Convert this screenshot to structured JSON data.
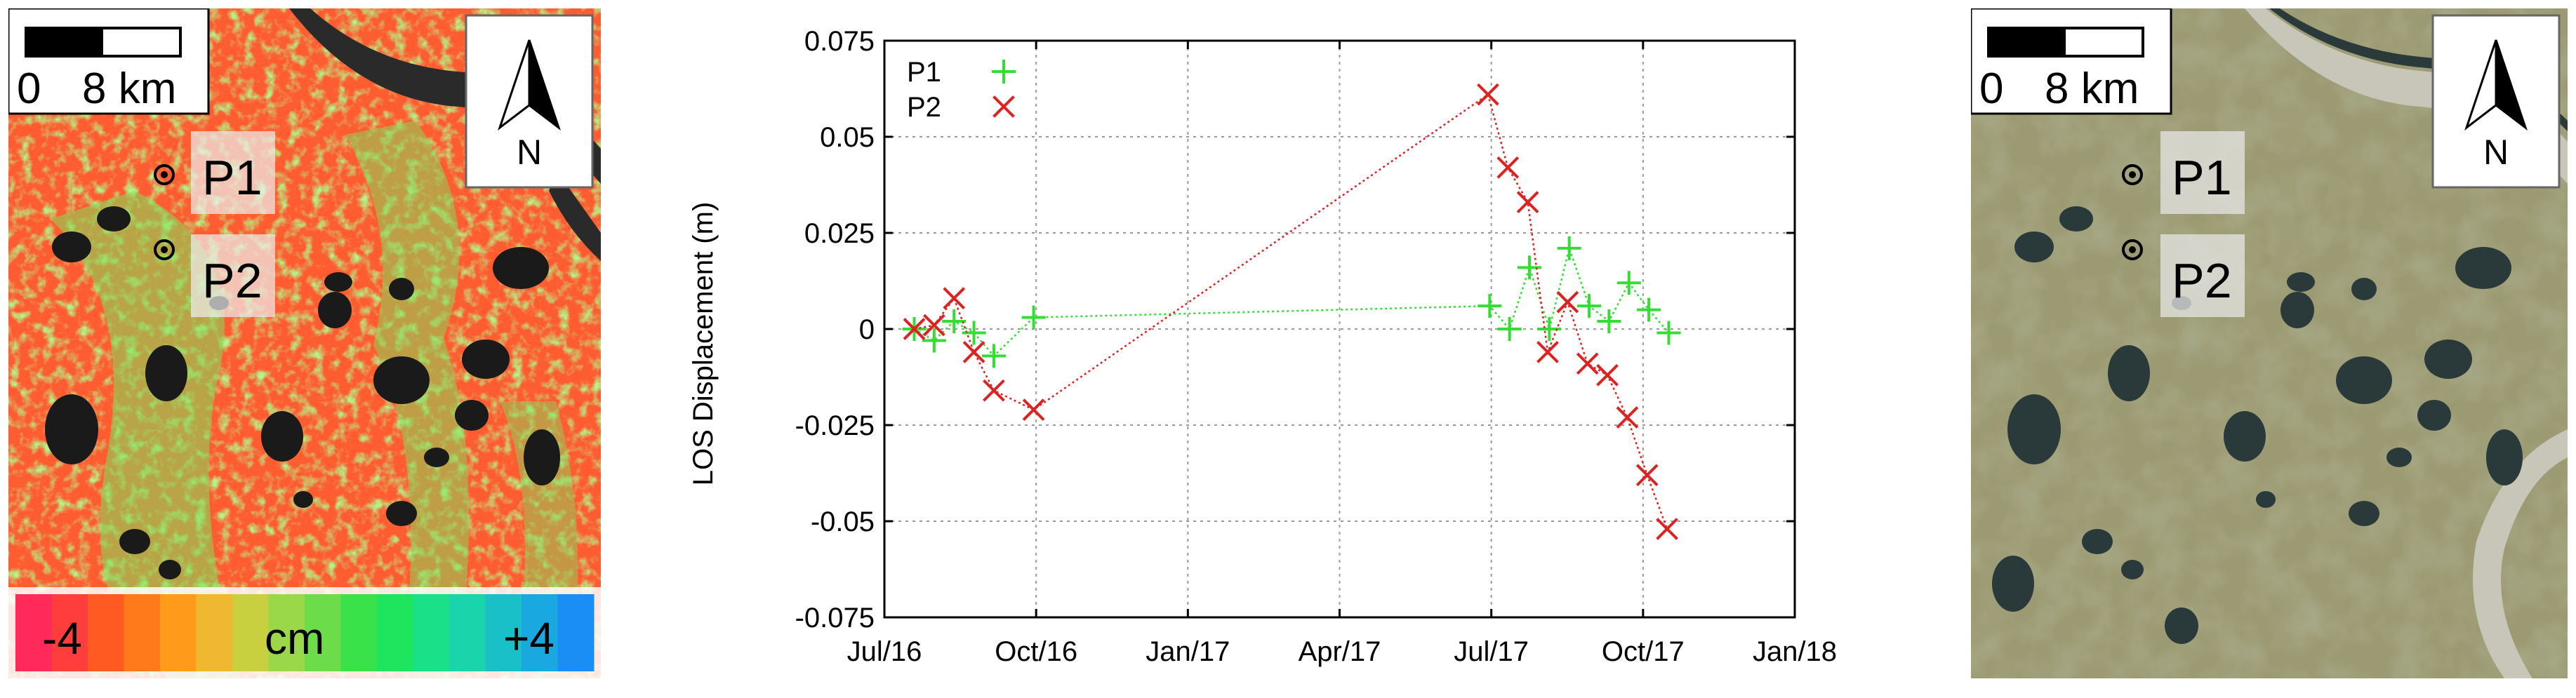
{
  "left_map": {
    "scalebar": {
      "zero": "0",
      "distance": "8 km"
    },
    "north": "N",
    "points": [
      {
        "label": "P1"
      },
      {
        "label": "P2"
      }
    ],
    "colorbar": {
      "min_label": "-4",
      "unit": "cm",
      "max_label": "+4",
      "colors": [
        "#ff2a5a",
        "#ff3d3d",
        "#ff5a22",
        "#ff7a1a",
        "#ff9a1a",
        "#f0b830",
        "#c8d040",
        "#9ad84a",
        "#6cdc4a",
        "#3ae24a",
        "#1ee45e",
        "#1ae088",
        "#1ad4ac",
        "#1ac0c8",
        "#1aa8e0",
        "#1a8ef4"
      ]
    },
    "palette": {
      "background": "#ff5a30",
      "green": "#7ee05a",
      "lakes": "#1a1a1a",
      "river": "#2a2a2a"
    }
  },
  "right_map": {
    "scalebar": {
      "zero": "0",
      "distance": "8 km"
    },
    "north": "N",
    "points": [
      {
        "label": "P1"
      },
      {
        "label": "P2"
      }
    ],
    "palette": {
      "background": "#9c9a72",
      "lakes": "#2a3a3a",
      "river_sand": "#c8c6b8"
    }
  },
  "chart_data": {
    "type": "scatter",
    "ylabel": "LOS Displacement (m)",
    "xlabel": "",
    "x_ticks": [
      "Jul/16",
      "Oct/16",
      "Jan/17",
      "Apr/17",
      "Jul/17",
      "Oct/17",
      "Jan/18"
    ],
    "y_ticks": [
      "0.075",
      "0.05",
      "0.025",
      "0",
      "-0.025",
      "-0.05",
      "-0.075"
    ],
    "ylim": [
      -0.075,
      0.075
    ],
    "xlim": [
      "2016-07-01",
      "2018-01-01"
    ],
    "grid": true,
    "legend_position": "top-left",
    "series": [
      {
        "name": "P1",
        "marker": "plus",
        "color": "#33dd33",
        "x": [
          "2016-07-19",
          "2016-07-31",
          "2016-08-12",
          "2016-08-24",
          "2016-09-05",
          "2016-09-29",
          "2017-07-01",
          "2017-07-13",
          "2017-07-25",
          "2017-08-06",
          "2017-08-18",
          "2017-08-30",
          "2017-09-11",
          "2017-09-23",
          "2017-10-05",
          "2017-10-17"
        ],
        "y": [
          0.0,
          -0.003,
          0.002,
          -0.001,
          -0.007,
          0.003,
          0.006,
          0.0,
          0.016,
          0.0,
          0.021,
          0.006,
          0.002,
          0.012,
          0.005,
          -0.001
        ]
      },
      {
        "name": "P2",
        "marker": "x",
        "color": "#dd2222",
        "x": [
          "2016-07-19",
          "2016-07-31",
          "2016-08-12",
          "2016-08-24",
          "2016-09-05",
          "2016-09-29",
          "2017-06-30",
          "2017-07-12",
          "2017-07-24",
          "2017-08-05",
          "2017-08-17",
          "2017-08-29",
          "2017-09-10",
          "2017-09-22",
          "2017-10-04",
          "2017-10-16"
        ],
        "y": [
          0.0,
          0.001,
          0.008,
          -0.006,
          -0.016,
          -0.021,
          0.061,
          0.042,
          0.033,
          -0.006,
          0.007,
          -0.009,
          -0.012,
          -0.023,
          -0.038,
          -0.052
        ]
      }
    ]
  }
}
